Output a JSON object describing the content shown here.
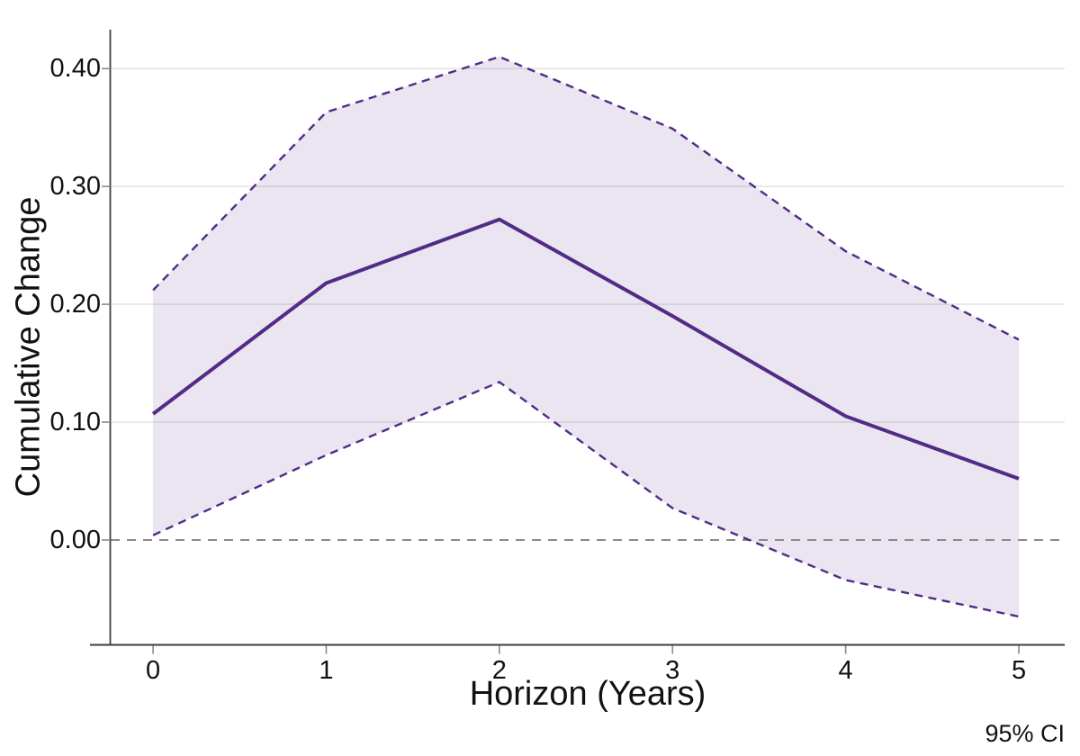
{
  "chart_data": {
    "type": "line",
    "x": [
      0,
      1,
      2,
      3,
      4,
      5
    ],
    "series": [
      {
        "name": "cumulative_change_mean",
        "values": [
          0.107,
          0.218,
          0.272,
          0.19,
          0.105,
          0.052
        ]
      },
      {
        "name": "ci_upper",
        "values": [
          0.212,
          0.363,
          0.41,
          0.349,
          0.245,
          0.17
        ]
      },
      {
        "name": "ci_lower",
        "values": [
          0.004,
          0.072,
          0.134,
          0.027,
          -0.034,
          -0.065
        ]
      }
    ],
    "title": "",
    "xlabel": "Horizon (Years)",
    "ylabel": "Cumulative Change",
    "annotation": "95% CI",
    "xticks": {
      "values": [
        0,
        1,
        2,
        3,
        4,
        5
      ],
      "labels": [
        "0",
        "1",
        "2",
        "3",
        "4",
        "5"
      ]
    },
    "yticks": {
      "values": [
        0.0,
        0.1,
        0.2,
        0.3,
        0.4
      ],
      "labels": [
        "0.00",
        "0.10",
        "0.20",
        "0.30",
        "0.40"
      ]
    },
    "xlim": [
      -0.25,
      5.265
    ],
    "ylim": [
      -0.089,
      0.433
    ],
    "grid": "horizontal",
    "zero_reference_line": true,
    "legend_position": "none",
    "colors": {
      "line": "#522b86",
      "band_fill": "rgba(82, 43, 134, 0.12)",
      "band_edge": "#522b86",
      "zero_line": "#8a8a8a",
      "grid": "#e5e5e5",
      "axis": "#3d3d3d",
      "tick": "#8a8a8a",
      "text": "#111111"
    }
  }
}
